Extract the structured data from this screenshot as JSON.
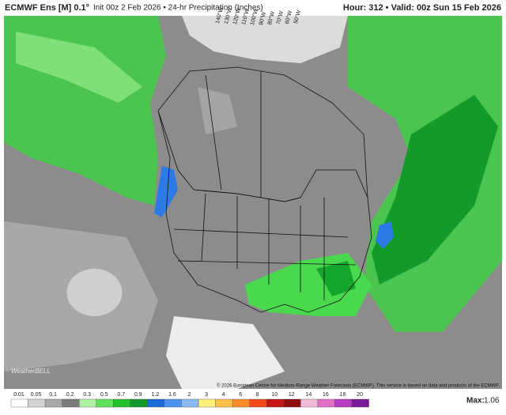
{
  "header": {
    "model": "ECMWF Ens [M] 0.1°",
    "info": "Init 00z 2 Feb 2026 • 24-hr Precipitation (Inches)",
    "valid": "Hour: 312 • Valid: 00z Sun 15 Feb 2026"
  },
  "map": {
    "longitude_labels": [
      "140°W",
      "130°W",
      "120°W",
      "110°W",
      "100°W",
      "90°W",
      "80°W",
      "70°W",
      "60°W",
      "50°W"
    ],
    "logo": "WeatherBELL",
    "copyright": "© 2026 European Centre for Medium-Range Weather Forecasts (ECMWF). This service is based on data and products of the ECMWF."
  },
  "legend": {
    "labels": [
      "0.01",
      "0.05",
      "0.1",
      "0.2",
      "0.3",
      "0.5",
      "0.7",
      "0.9",
      "1.2",
      "1.6",
      "2",
      "3",
      "4",
      "6",
      "8",
      "10",
      "12",
      "14",
      "16",
      "18",
      "20"
    ],
    "colors": [
      "#ffffff",
      "#d4d4d4",
      "#a8a8a8",
      "#7c7c7c",
      "#aef2a4",
      "#5ee05a",
      "#22c12a",
      "#11992a",
      "#1c6bd6",
      "#4a93ee",
      "#8bbbf5",
      "#fff27a",
      "#ffc04a",
      "#ff8a2a",
      "#f24a1a",
      "#c41414",
      "#8e0e0e",
      "#f2b8d8",
      "#e070c8",
      "#b43cc0",
      "#7a1a9a"
    ],
    "max_label": "Max:",
    "max_value": "1.06"
  }
}
